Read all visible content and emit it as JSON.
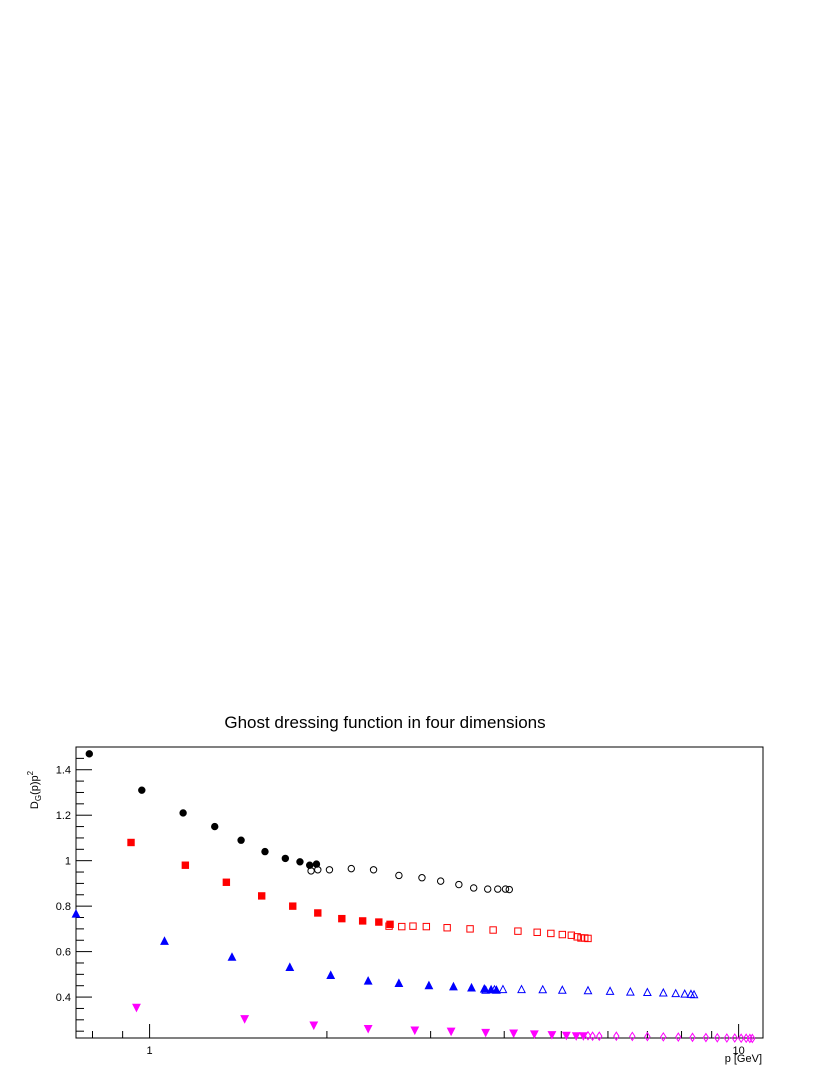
{
  "chart_data": {
    "type": "scatter",
    "title": "Ghost dressing function in four dimensions",
    "xlabel": "p [GeV]",
    "ylabel_main": "D",
    "ylabel_sub": "G",
    "ylabel_rest": "(p)p",
    "ylabel_sup": "2",
    "x_scale": "log",
    "xlim": [
      0.75,
      11
    ],
    "ylim": [
      0.22,
      1.5
    ],
    "x_ticks": [
      {
        "value": 1,
        "label": "1"
      },
      {
        "value": 10,
        "label": "10"
      }
    ],
    "y_ticks": [
      {
        "value": 0.4,
        "label": "0.4"
      },
      {
        "value": 0.6,
        "label": "0.6"
      },
      {
        "value": 0.8,
        "label": "0.8"
      },
      {
        "value": 1.0,
        "label": "1"
      },
      {
        "value": 1.2,
        "label": "1.2"
      },
      {
        "value": 1.4,
        "label": "1.4"
      }
    ],
    "grid": false,
    "legend": false,
    "series": [
      {
        "color": "#000000",
        "marker": "circle",
        "filled": true,
        "x": [
          0.79,
          0.97,
          1.14,
          1.29,
          1.43,
          1.57,
          1.7,
          1.8,
          1.87,
          1.92
        ],
        "y": [
          1.47,
          1.31,
          1.21,
          1.15,
          1.09,
          1.04,
          1.01,
          0.995,
          0.98,
          0.985
        ]
      },
      {
        "color": "#000000",
        "marker": "circle",
        "filled": false,
        "x": [
          1.88,
          1.93,
          2.02,
          2.2,
          2.4,
          2.65,
          2.9,
          3.12,
          3.35,
          3.55,
          3.75,
          3.9,
          4.02,
          4.08
        ],
        "y": [
          0.955,
          0.96,
          0.96,
          0.965,
          0.96,
          0.935,
          0.925,
          0.91,
          0.895,
          0.88,
          0.875,
          0.875,
          0.875,
          0.873
        ]
      },
      {
        "color": "#ff0000",
        "marker": "square",
        "filled": true,
        "x": [
          0.93,
          1.15,
          1.35,
          1.55,
          1.75,
          1.93,
          2.12,
          2.3,
          2.45,
          2.56
        ],
        "y": [
          1.08,
          0.98,
          0.905,
          0.845,
          0.8,
          0.77,
          0.745,
          0.735,
          0.73,
          0.72
        ]
      },
      {
        "color": "#ff0000",
        "marker": "square",
        "filled": false,
        "x": [
          2.55,
          2.68,
          2.8,
          2.95,
          3.2,
          3.5,
          3.83,
          4.22,
          4.55,
          4.8,
          5.02,
          5.2,
          5.32,
          5.4,
          5.48,
          5.55
        ],
        "y": [
          0.712,
          0.71,
          0.712,
          0.71,
          0.705,
          0.7,
          0.695,
          0.69,
          0.685,
          0.68,
          0.675,
          0.672,
          0.665,
          0.66,
          0.66,
          0.658
        ]
      },
      {
        "color": "#0000ff",
        "marker": "triangle-up",
        "filled": true,
        "x": [
          0.75,
          1.06,
          1.38,
          1.73,
          2.03,
          2.35,
          2.65,
          2.98,
          3.28,
          3.52,
          3.7,
          3.8,
          3.88
        ],
        "y": [
          0.765,
          0.645,
          0.575,
          0.53,
          0.495,
          0.47,
          0.46,
          0.45,
          0.445,
          0.44,
          0.435,
          0.432,
          0.43
        ]
      },
      {
        "color": "#0000ff",
        "marker": "triangle-up",
        "filled": false,
        "x": [
          3.72,
          3.85,
          3.98,
          4.28,
          4.65,
          5.02,
          5.55,
          6.05,
          6.55,
          7.0,
          7.45,
          7.82,
          8.1,
          8.3,
          8.4
        ],
        "y": [
          0.43,
          0.432,
          0.433,
          0.433,
          0.432,
          0.43,
          0.428,
          0.425,
          0.422,
          0.42,
          0.418,
          0.415,
          0.413,
          0.412,
          0.41
        ]
      },
      {
        "color": "#ff00ff",
        "marker": "triangle-down",
        "filled": true,
        "x": [
          0.95,
          1.45,
          1.9,
          2.35,
          2.82,
          3.25,
          3.72,
          4.15,
          4.5,
          4.82,
          5.1,
          5.3,
          5.45
        ],
        "y": [
          0.355,
          0.305,
          0.277,
          0.262,
          0.255,
          0.25,
          0.245,
          0.242,
          0.238,
          0.235,
          0.232,
          0.23,
          0.23
        ]
      },
      {
        "color": "#ff00ff",
        "marker": "diamond",
        "filled": false,
        "x": [
          5.55,
          5.65,
          5.8,
          6.2,
          6.6,
          7.0,
          7.45,
          7.9,
          8.35,
          8.8,
          9.2,
          9.55,
          9.85,
          10.1,
          10.3,
          10.45,
          10.55
        ],
        "y": [
          0.23,
          0.228,
          0.228,
          0.228,
          0.227,
          0.226,
          0.225,
          0.224,
          0.223,
          0.222,
          0.221,
          0.22,
          0.22,
          0.219,
          0.219,
          0.218,
          0.218
        ]
      }
    ]
  }
}
